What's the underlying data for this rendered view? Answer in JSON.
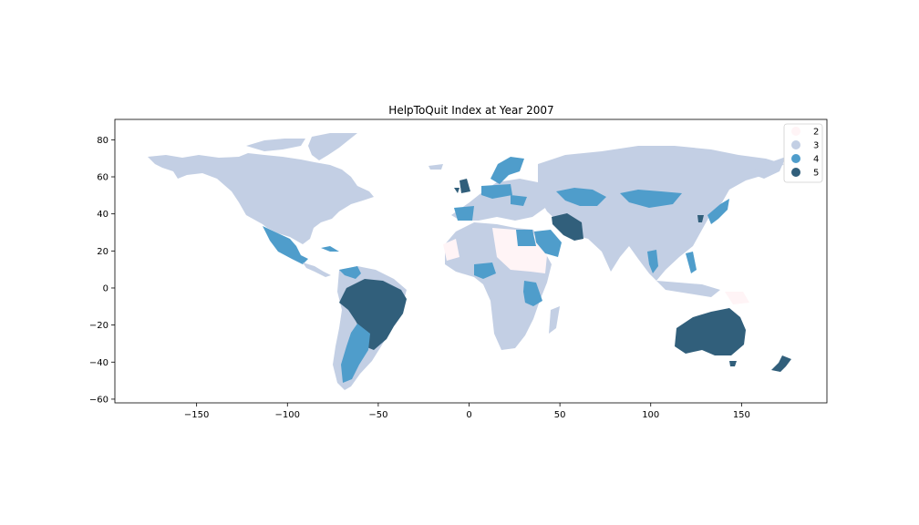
{
  "chart_data": {
    "type": "choropleth",
    "title": "HelpToQuit Index at Year 2007",
    "xlim": [
      -195,
      197
    ],
    "ylim": [
      -62,
      91
    ],
    "xticks": [
      -150,
      -100,
      -50,
      0,
      50,
      100,
      150
    ],
    "yticks": [
      -60,
      -40,
      -20,
      0,
      20,
      40,
      60,
      80
    ],
    "xtick_labels": [
      "−150",
      "−100",
      "−50",
      "0",
      "50",
      "100",
      "150"
    ],
    "ytick_labels": [
      "−60",
      "−40",
      "−20",
      "0",
      "20",
      "40",
      "60",
      "80"
    ],
    "legend": {
      "placement": "top-right",
      "entries": [
        {
          "label": "2",
          "color": "#fff4f6"
        },
        {
          "label": "3",
          "color": "#c3cfe4"
        },
        {
          "label": "4",
          "color": "#4f9dcb"
        },
        {
          "label": "5",
          "color": "#315f7b"
        }
      ]
    },
    "regions_by_index": {
      "2": [
        "Western Sahara",
        "Libya",
        "Chad",
        "Sudan",
        "Papua New Guinea"
      ],
      "4": [
        "Spain",
        "Mexico",
        "Venezuela",
        "Cuba",
        "Argentina",
        "Paraguay",
        "Egypt",
        "Saudi Arabia",
        "Nigeria",
        "Tanzania",
        "Zambia",
        "Kazakhstan",
        "Mongolia",
        "Japan",
        "Thailand",
        "Philippines",
        "Norway",
        "Sweden",
        "Finland",
        "Germany",
        "Poland",
        "Ukraine"
      ],
      "5": [
        "Brazil",
        "Australia",
        "Iran",
        "New Zealand",
        "Ireland",
        "United Kingdom"
      ]
    }
  }
}
